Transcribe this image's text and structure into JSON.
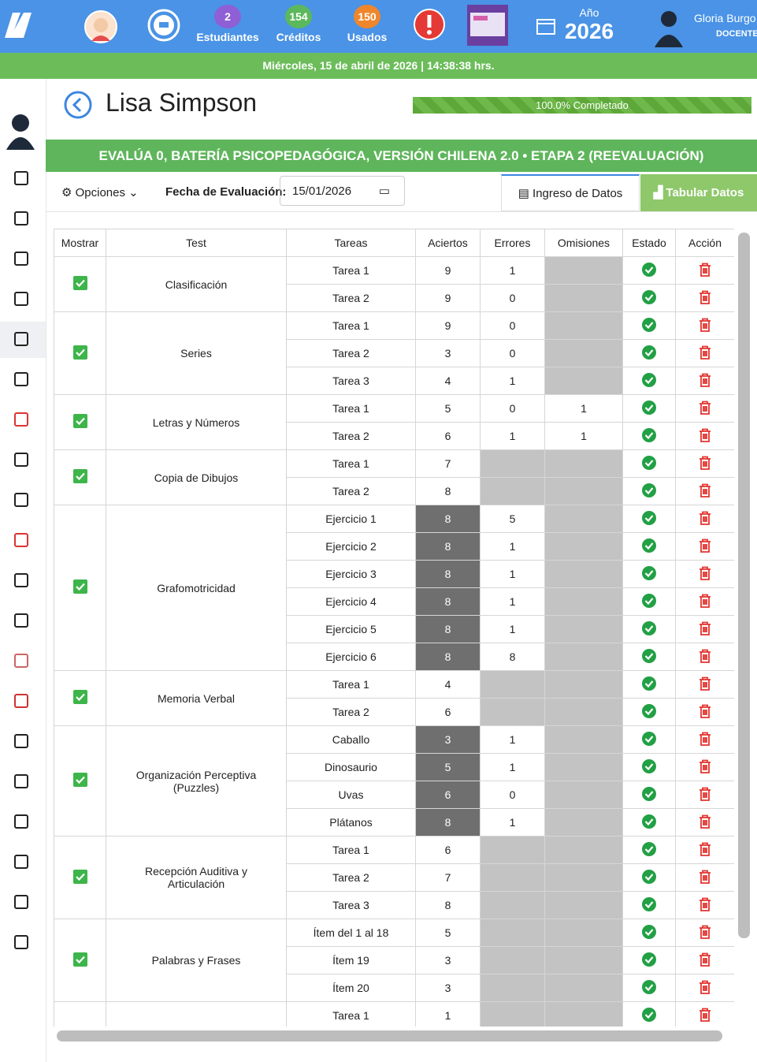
{
  "topbar": {
    "students": {
      "count": "2",
      "label": "Estudiantes"
    },
    "credits": {
      "count": "154",
      "label": "Créditos"
    },
    "used": {
      "count": "150",
      "label": "Usados"
    },
    "year": {
      "label": "Año",
      "value": "2026"
    },
    "user": {
      "name": "Gloria Burgo",
      "role": "DOCENTE"
    }
  },
  "datebar": {
    "date": "Miércoles, 15 de abril de 2026 |",
    "time": "14:38:38 hrs."
  },
  "header": {
    "student": "Lisa Simpson",
    "progress": "100.0% Completado"
  },
  "banner": "EVALÚA 0, BATERÍA PSICOPEDAGÓGICA, VERSIÓN CHILENA 2.0 • ETAPA 2 (REEVALUACIÓN)",
  "toolbar": {
    "options": "Opciones",
    "date_label": "Fecha de Evaluación:",
    "date_value": "15/01/2026",
    "tabs": [
      "Ingreso de Datos",
      "Tabular Datos"
    ]
  },
  "table": {
    "columns": [
      "Mostrar",
      "Test",
      "Tareas",
      "Aciertos",
      "Errores",
      "Omisiones",
      "Estado",
      "Acción"
    ],
    "groups": [
      {
        "test": "Clasificación",
        "rows": [
          {
            "tarea": "Tarea 1",
            "aciertos": 9,
            "errores": 1,
            "omisiones": null
          },
          {
            "tarea": "Tarea 2",
            "aciertos": 9,
            "errores": 0,
            "omisiones": null
          }
        ]
      },
      {
        "test": "Series",
        "rows": [
          {
            "tarea": "Tarea 1",
            "aciertos": 9,
            "errores": 0,
            "omisiones": null
          },
          {
            "tarea": "Tarea 2",
            "aciertos": 3,
            "errores": 0,
            "omisiones": null
          },
          {
            "tarea": "Tarea 3",
            "aciertos": 4,
            "errores": 1,
            "omisiones": null
          }
        ]
      },
      {
        "test": "Letras y Números",
        "rows": [
          {
            "tarea": "Tarea 1",
            "aciertos": 5,
            "errores": 0,
            "omisiones": 1
          },
          {
            "tarea": "Tarea 2",
            "aciertos": 6,
            "errores": 1,
            "omisiones": 1
          }
        ]
      },
      {
        "test": "Copia de Dibujos",
        "rows": [
          {
            "tarea": "Tarea 1",
            "aciertos": 7,
            "errores": null,
            "omisiones": null
          },
          {
            "tarea": "Tarea 2",
            "aciertos": 8,
            "errores": null,
            "omisiones": null
          }
        ]
      },
      {
        "test": "Grafomotricidad",
        "aciertos_fixed": true,
        "rows": [
          {
            "tarea": "Ejercicio 1",
            "aciertos": 8,
            "errores": 5,
            "omisiones": null
          },
          {
            "tarea": "Ejercicio 2",
            "aciertos": 8,
            "errores": 1,
            "omisiones": null
          },
          {
            "tarea": "Ejercicio 3",
            "aciertos": 8,
            "errores": 1,
            "omisiones": null
          },
          {
            "tarea": "Ejercicio 4",
            "aciertos": 8,
            "errores": 1,
            "omisiones": null
          },
          {
            "tarea": "Ejercicio 5",
            "aciertos": 8,
            "errores": 1,
            "omisiones": null
          },
          {
            "tarea": "Ejercicio 6",
            "aciertos": 8,
            "errores": 8,
            "omisiones": null
          }
        ]
      },
      {
        "test": "Memoria Verbal",
        "rows": [
          {
            "tarea": "Tarea 1",
            "aciertos": 4,
            "errores": null,
            "omisiones": null
          },
          {
            "tarea": "Tarea 2",
            "aciertos": 6,
            "errores": null,
            "omisiones": null
          }
        ]
      },
      {
        "test": "Organización Perceptiva (Puzzles)",
        "aciertos_fixed": true,
        "rows": [
          {
            "tarea": "Caballo",
            "aciertos": 3,
            "errores": 1,
            "omisiones": null
          },
          {
            "tarea": "Dinosaurio",
            "aciertos": 5,
            "errores": 1,
            "omisiones": null
          },
          {
            "tarea": "Uvas",
            "aciertos": 6,
            "errores": 0,
            "omisiones": null
          },
          {
            "tarea": "Plátanos",
            "aciertos": 8,
            "errores": 1,
            "omisiones": null
          }
        ]
      },
      {
        "test": "Recepción Auditiva y Articulación",
        "rows": [
          {
            "tarea": "Tarea 1",
            "aciertos": 6,
            "errores": null,
            "omisiones": null
          },
          {
            "tarea": "Tarea 2",
            "aciertos": 7,
            "errores": null,
            "omisiones": null
          },
          {
            "tarea": "Tarea 3",
            "aciertos": 8,
            "errores": null,
            "omisiones": null
          }
        ]
      },
      {
        "test": "Palabras y Frases",
        "rows": [
          {
            "tarea": "Ítem del 1 al 18",
            "aciertos": 5,
            "errores": null,
            "omisiones": null
          },
          {
            "tarea": "Ítem 19",
            "aciertos": 3,
            "errores": null,
            "omisiones": null
          },
          {
            "tarea": "Ítem 20",
            "aciertos": 3,
            "errores": null,
            "omisiones": null
          }
        ]
      },
      {
        "test": null,
        "rows": [
          {
            "tarea": "Tarea 1",
            "aciertos": 1,
            "errores": null,
            "omisiones": null
          }
        ]
      }
    ]
  }
}
